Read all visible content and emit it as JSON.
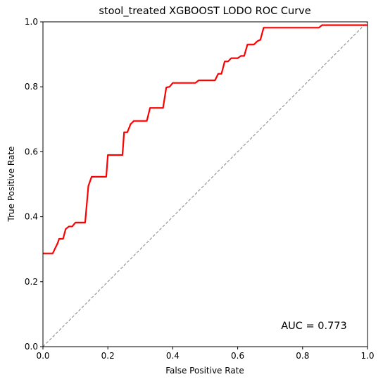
{
  "chart_data": {
    "type": "line",
    "title": "stool_treated XGBOOST LODO ROC Curve",
    "xlabel": "False Positive Rate",
    "ylabel": "True Positive Rate",
    "xlim": [
      0.0,
      1.0
    ],
    "ylim": [
      0.0,
      1.0
    ],
    "xticks": [
      0.0,
      0.2,
      0.4,
      0.6,
      0.8,
      1.0
    ],
    "yticks": [
      0.0,
      0.2,
      0.4,
      0.6,
      0.8,
      1.0
    ],
    "xtick_labels": [
      "0.0",
      "0.2",
      "0.4",
      "0.6",
      "0.8",
      "1.0"
    ],
    "ytick_labels": [
      "0.0",
      "0.2",
      "0.4",
      "0.6",
      "0.8",
      "1.0"
    ],
    "grid": false,
    "annotation": "AUC = 0.773",
    "colors": {
      "roc": "#ff0000",
      "diagonal": "#808080",
      "axes": "#000000"
    },
    "series": [
      {
        "values": [
          [
            0.0,
            0.287
          ],
          [
            0.03,
            0.287
          ],
          [
            0.045,
            0.318
          ],
          [
            0.05,
            0.332
          ],
          [
            0.062,
            0.332
          ],
          [
            0.07,
            0.362
          ],
          [
            0.08,
            0.37
          ],
          [
            0.09,
            0.37
          ],
          [
            0.1,
            0.382
          ],
          [
            0.13,
            0.382
          ],
          [
            0.14,
            0.495
          ],
          [
            0.15,
            0.523
          ],
          [
            0.195,
            0.523
          ],
          [
            0.2,
            0.59
          ],
          [
            0.245,
            0.59
          ],
          [
            0.25,
            0.66
          ],
          [
            0.26,
            0.66
          ],
          [
            0.27,
            0.685
          ],
          [
            0.28,
            0.695
          ],
          [
            0.32,
            0.695
          ],
          [
            0.33,
            0.735
          ],
          [
            0.37,
            0.735
          ],
          [
            0.38,
            0.798
          ],
          [
            0.39,
            0.8
          ],
          [
            0.4,
            0.812
          ],
          [
            0.47,
            0.812
          ],
          [
            0.48,
            0.82
          ],
          [
            0.53,
            0.82
          ],
          [
            0.54,
            0.84
          ],
          [
            0.55,
            0.84
          ],
          [
            0.56,
            0.878
          ],
          [
            0.57,
            0.878
          ],
          [
            0.58,
            0.888
          ],
          [
            0.6,
            0.888
          ],
          [
            0.61,
            0.895
          ],
          [
            0.62,
            0.895
          ],
          [
            0.63,
            0.93
          ],
          [
            0.65,
            0.93
          ],
          [
            0.66,
            0.94
          ],
          [
            0.67,
            0.945
          ],
          [
            0.68,
            0.982
          ],
          [
            0.85,
            0.982
          ],
          [
            0.86,
            0.99
          ],
          [
            1.0,
            0.99
          ]
        ]
      },
      {
        "values": [
          [
            0.0,
            0.0
          ],
          [
            1.0,
            1.0
          ]
        ]
      }
    ]
  }
}
